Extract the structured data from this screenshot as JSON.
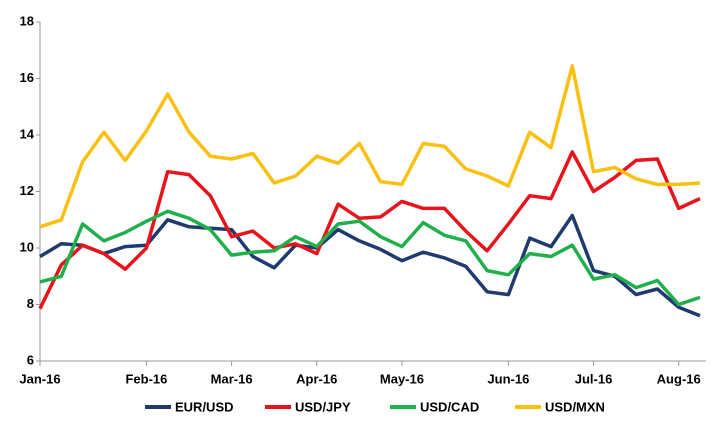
{
  "chart_data": {
    "type": "line",
    "categories": [
      "Jan-16",
      null,
      null,
      null,
      null,
      "Feb-16",
      null,
      null,
      null,
      "Mar-16",
      null,
      null,
      null,
      "Apr-16",
      null,
      null,
      null,
      "May-16",
      null,
      null,
      null,
      null,
      "Jun-16",
      null,
      null,
      null,
      "Jul-16",
      null,
      null,
      null,
      "Aug-16",
      null
    ],
    "ylim": [
      6,
      18
    ],
    "yticks": [
      6,
      8,
      10,
      12,
      14,
      16,
      18
    ],
    "grid": false,
    "legend": "bottom",
    "series": [
      {
        "name": "EUR/USD",
        "color": "#1f3a6e",
        "values": [
          9.7,
          10.15,
          10.1,
          9.8,
          10.05,
          10.1,
          11.0,
          10.75,
          10.7,
          10.65,
          9.7,
          9.3,
          10.1,
          10.0,
          10.65,
          10.25,
          9.95,
          9.55,
          9.85,
          9.65,
          9.35,
          8.45,
          8.35,
          10.35,
          10.05,
          11.15,
          9.2,
          9.0,
          8.35,
          8.55,
          7.9,
          7.6
        ]
      },
      {
        "name": "USD/JPY",
        "color": "#e8141b",
        "values": [
          7.85,
          9.4,
          10.1,
          9.8,
          9.25,
          10.0,
          12.7,
          12.6,
          11.85,
          10.4,
          10.6,
          10.0,
          10.15,
          9.8,
          11.55,
          11.05,
          11.1,
          11.65,
          11.4,
          11.4,
          10.6,
          9.9,
          10.85,
          11.85,
          11.75,
          13.4,
          12.0,
          12.5,
          13.1,
          13.15,
          11.4,
          11.75
        ]
      },
      {
        "name": "USD/CAD",
        "color": "#1fb04b",
        "values": [
          8.8,
          9.0,
          10.85,
          10.25,
          10.55,
          10.95,
          11.3,
          11.05,
          10.65,
          9.75,
          9.85,
          9.9,
          10.4,
          10.05,
          10.85,
          10.95,
          10.4,
          10.05,
          10.9,
          10.45,
          10.25,
          9.2,
          9.05,
          9.8,
          9.7,
          10.1,
          8.9,
          9.05,
          8.6,
          8.85,
          8.0,
          8.25
        ]
      },
      {
        "name": "USD/MXN",
        "color": "#f9c010",
        "values": [
          10.75,
          11.0,
          13.05,
          14.1,
          13.1,
          14.15,
          15.45,
          14.1,
          13.25,
          13.15,
          13.35,
          12.3,
          12.55,
          13.25,
          13.0,
          13.7,
          12.35,
          12.25,
          13.7,
          13.6,
          12.8,
          12.55,
          12.2,
          14.1,
          13.55,
          16.45,
          12.7,
          12.85,
          12.45,
          12.25,
          12.25,
          12.3
        ]
      }
    ]
  }
}
